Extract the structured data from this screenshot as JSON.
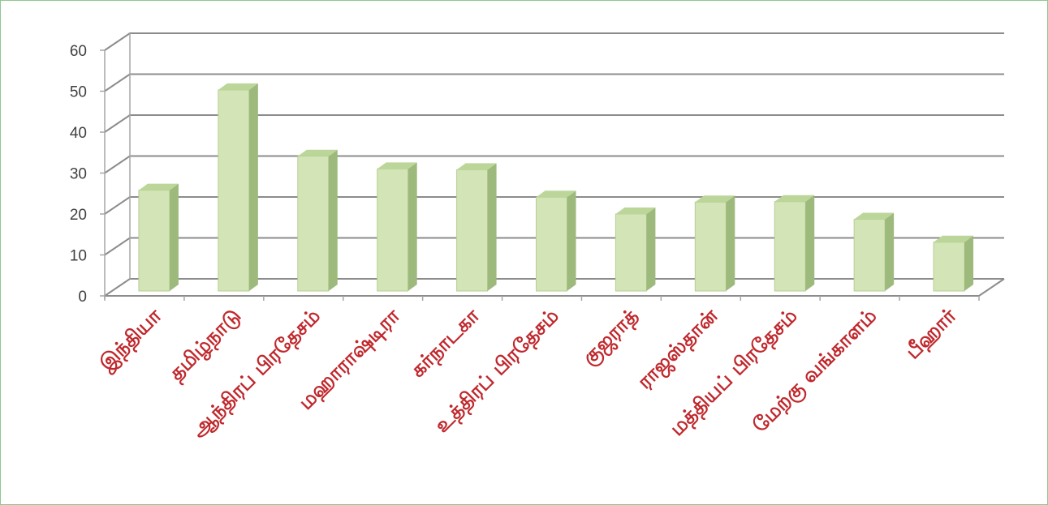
{
  "chart_data": {
    "type": "bar",
    "style": "3d-column",
    "categories": [
      "இந்தியா",
      "தமிழ்நாடு",
      "ஆந்திரப் பிரதேசம்",
      "மஹாராஷ்டிரா",
      "கர்நாடகா",
      "உத்திரப் பிரதேசம்",
      "குஜராத்",
      "ராஜஸ்தான்",
      "மத்தியப் பிரதேசம்",
      "மேற்கு வங்காளம்",
      "பீஹார்"
    ],
    "values": [
      27,
      51.5,
      35.3,
      32.2,
      32,
      25.3,
      21.2,
      24.1,
      24.2,
      19.9,
      14.3
    ],
    "ylim": [
      0,
      60
    ],
    "yticks": [
      "0",
      "10",
      "20",
      "30",
      "40",
      "50",
      "60"
    ],
    "grid": true,
    "title": "",
    "xlabel": "",
    "ylabel": "",
    "colors": {
      "bar_front": "#d3e5b7",
      "bar_side": "#9dba7c",
      "bar_top": "#bcd69a",
      "bar_edge": "#b5cf95",
      "category_label": "#c0282d",
      "gridline": "#8c8c8c",
      "frame_border": "#8fc78f"
    }
  }
}
